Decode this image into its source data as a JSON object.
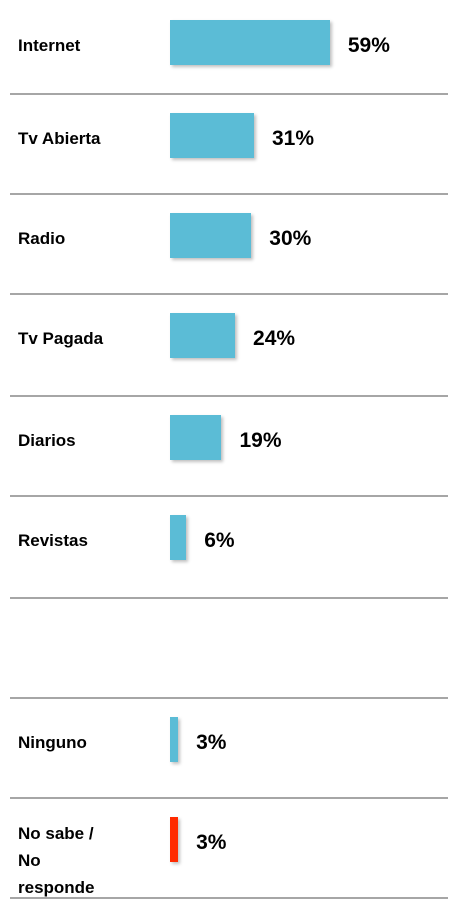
{
  "chart_data": {
    "type": "bar",
    "orientation": "horizontal",
    "categories": [
      "Internet",
      "Tv Abierta",
      "Radio",
      "Tv Pagada",
      "Diarios",
      "Revistas",
      "Ninguno",
      "No sabe / No responde"
    ],
    "values": [
      59,
      31,
      30,
      24,
      19,
      6,
      3,
      3
    ],
    "value_labels": [
      "59%",
      "31%",
      "30%",
      "24%",
      "19%",
      "6%",
      "3%",
      "3%"
    ],
    "colors": [
      "#5bbcd6",
      "#5bbcd6",
      "#5bbcd6",
      "#5bbcd6",
      "#5bbcd6",
      "#5bbcd6",
      "#5bbcd6",
      "#ff2a00"
    ]
  }
}
